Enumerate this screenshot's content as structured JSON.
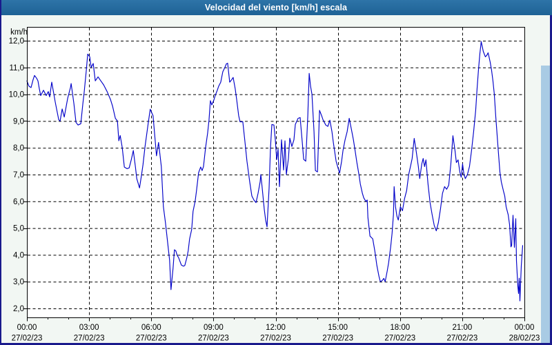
{
  "window": {
    "title": "Velocidad del viento [km/h] escala"
  },
  "colors": {
    "titlebar_top": "#2E74A8",
    "titlebar_bottom": "#1E6295",
    "frame": "#1A1A8C",
    "panel": "#F2F7F3",
    "plot_background": "#FFFFFF",
    "grid": "#000000",
    "line": "#0000C8",
    "right_strip": "#A9CBE4",
    "label_text": "#000000"
  },
  "chart_data": {
    "type": "line",
    "title": "Velocidad del viento [km/h] escala",
    "ylabel": "km/h",
    "xlabel": "",
    "ylim": [
      2,
      12
    ],
    "x_range_minutes": [
      0,
      1440
    ],
    "grid": true,
    "legend": "none",
    "y_ticks": [
      {
        "label": "12,0",
        "value": 12
      },
      {
        "label": "11,0",
        "value": 11
      },
      {
        "label": "10,0",
        "value": 10
      },
      {
        "label": "9,0",
        "value": 9
      },
      {
        "label": "8,0",
        "value": 8
      },
      {
        "label": "7,0",
        "value": 7
      },
      {
        "label": "6,0",
        "value": 6
      },
      {
        "label": "5,0",
        "value": 5
      },
      {
        "label": "4,0",
        "value": 4
      },
      {
        "label": "3,0",
        "value": 3
      },
      {
        "label": "2,0",
        "value": 2
      }
    ],
    "x_ticks": [
      {
        "minutes": 0,
        "time": "00:00",
        "date": "27/02/23"
      },
      {
        "minutes": 180,
        "time": "03:00",
        "date": "27/02/23"
      },
      {
        "minutes": 360,
        "time": "06:00",
        "date": "27/02/23"
      },
      {
        "minutes": 540,
        "time": "09:00",
        "date": "27/02/23"
      },
      {
        "minutes": 720,
        "time": "12:00",
        "date": "27/02/23"
      },
      {
        "minutes": 900,
        "time": "15:00",
        "date": "27/02/23"
      },
      {
        "minutes": 1080,
        "time": "18:00",
        "date": "27/02/23"
      },
      {
        "minutes": 1260,
        "time": "21:00",
        "date": "27/02/23"
      },
      {
        "minutes": 1440,
        "time": "00:00",
        "date": "28/02/23"
      }
    ],
    "minor_tick_every_minutes": 60,
    "series": [
      {
        "name": "Velocidad del viento",
        "unit": "km/h",
        "color": "#0000C8",
        "points": [
          [
            0,
            10.5
          ],
          [
            6,
            10.3
          ],
          [
            12,
            10.25
          ],
          [
            18,
            10.55
          ],
          [
            22,
            10.7
          ],
          [
            28,
            10.6
          ],
          [
            32,
            10.5
          ],
          [
            36,
            10.2
          ],
          [
            40,
            9.95
          ],
          [
            48,
            10.15
          ],
          [
            56,
            9.95
          ],
          [
            62,
            10.1
          ],
          [
            66,
            9.9
          ],
          [
            72,
            10.45
          ],
          [
            82,
            9.7
          ],
          [
            92,
            9.05
          ],
          [
            96,
            9.0
          ],
          [
            102,
            9.45
          ],
          [
            108,
            9.15
          ],
          [
            118,
            9.85
          ],
          [
            126,
            10.25
          ],
          [
            128,
            10.4
          ],
          [
            136,
            9.65
          ],
          [
            142,
            8.95
          ],
          [
            148,
            8.85
          ],
          [
            156,
            8.9
          ],
          [
            162,
            9.65
          ],
          [
            166,
            10.1
          ],
          [
            172,
            10.9
          ],
          [
            176,
            11.5
          ],
          [
            182,
            11.4
          ],
          [
            186,
            11.0
          ],
          [
            192,
            11.15
          ],
          [
            198,
            10.5
          ],
          [
            206,
            10.65
          ],
          [
            214,
            10.5
          ],
          [
            222,
            10.35
          ],
          [
            232,
            10.1
          ],
          [
            242,
            9.8
          ],
          [
            248,
            9.55
          ],
          [
            256,
            9.1
          ],
          [
            262,
            9.0
          ],
          [
            266,
            8.26
          ],
          [
            270,
            8.46
          ],
          [
            276,
            8.0
          ],
          [
            282,
            7.28
          ],
          [
            290,
            7.22
          ],
          [
            296,
            7.25
          ],
          [
            302,
            7.55
          ],
          [
            308,
            7.9
          ],
          [
            314,
            7.3
          ],
          [
            318,
            6.85
          ],
          [
            326,
            6.5
          ],
          [
            332,
            7.0
          ],
          [
            336,
            7.36
          ],
          [
            342,
            8.05
          ],
          [
            351,
            8.9
          ],
          [
            357,
            9.44
          ],
          [
            365,
            9.2
          ],
          [
            371,
            8.3
          ],
          [
            375,
            7.7
          ],
          [
            381,
            8.2
          ],
          [
            389,
            7.3
          ],
          [
            395,
            5.8
          ],
          [
            401,
            5.2
          ],
          [
            407,
            4.5
          ],
          [
            413,
            3.8
          ],
          [
            417,
            2.7
          ],
          [
            423,
            3.5
          ],
          [
            427,
            4.19
          ],
          [
            431,
            4.15
          ],
          [
            435,
            3.98
          ],
          [
            439,
            3.9
          ],
          [
            447,
            3.62
          ],
          [
            453,
            3.58
          ],
          [
            457,
            3.6
          ],
          [
            463,
            3.9
          ],
          [
            467,
            4.16
          ],
          [
            471,
            4.6
          ],
          [
            477,
            4.95
          ],
          [
            481,
            5.63
          ],
          [
            487,
            6.0
          ],
          [
            491,
            6.4
          ],
          [
            497,
            7.07
          ],
          [
            503,
            7.28
          ],
          [
            507,
            7.15
          ],
          [
            511,
            7.3
          ],
          [
            517,
            8.0
          ],
          [
            523,
            8.55
          ],
          [
            527,
            9.03
          ],
          [
            531,
            9.76
          ],
          [
            535,
            9.6
          ],
          [
            541,
            9.78
          ],
          [
            545,
            9.95
          ],
          [
            551,
            10.15
          ],
          [
            555,
            10.3
          ],
          [
            561,
            10.45
          ],
          [
            567,
            10.84
          ],
          [
            573,
            11.0
          ],
          [
            577,
            11.13
          ],
          [
            581,
            11.16
          ],
          [
            587,
            10.45
          ],
          [
            593,
            10.55
          ],
          [
            597,
            10.63
          ],
          [
            603,
            10.2
          ],
          [
            607,
            9.82
          ],
          [
            613,
            9.2
          ],
          [
            617,
            8.97
          ],
          [
            625,
            8.97
          ],
          [
            631,
            8.25
          ],
          [
            637,
            7.5
          ],
          [
            645,
            6.73
          ],
          [
            651,
            6.2
          ],
          [
            657,
            6.05
          ],
          [
            663,
            5.95
          ],
          [
            669,
            6.3
          ],
          [
            675,
            6.73
          ],
          [
            677,
            7.0
          ],
          [
            681,
            6.5
          ],
          [
            687,
            5.7
          ],
          [
            691,
            5.3
          ],
          [
            695,
            5.05
          ],
          [
            701,
            6.5
          ],
          [
            705,
            8.0
          ],
          [
            709,
            8.87
          ],
          [
            715,
            8.85
          ],
          [
            719,
            8.3
          ],
          [
            723,
            7.56
          ],
          [
            727,
            7.95
          ],
          [
            731,
            6.55
          ],
          [
            737,
            8.3
          ],
          [
            743,
            7.17
          ],
          [
            747,
            8.26
          ],
          [
            751,
            7.0
          ],
          [
            757,
            7.6
          ],
          [
            761,
            8.36
          ],
          [
            767,
            8.05
          ],
          [
            773,
            8.3
          ],
          [
            777,
            8.87
          ],
          [
            785,
            9.1
          ],
          [
            791,
            9.13
          ],
          [
            797,
            8.2
          ],
          [
            801,
            7.57
          ],
          [
            807,
            7.5
          ],
          [
            813,
            9.2
          ],
          [
            817,
            10.78
          ],
          [
            821,
            10.3
          ],
          [
            825,
            10.0
          ],
          [
            831,
            8.6
          ],
          [
            835,
            7.15
          ],
          [
            841,
            7.1
          ],
          [
            847,
            9.4
          ],
          [
            853,
            9.2
          ],
          [
            857,
            9.05
          ],
          [
            865,
            8.85
          ],
          [
            871,
            8.8
          ],
          [
            877,
            9.03
          ],
          [
            883,
            8.6
          ],
          [
            887,
            8.2
          ],
          [
            895,
            7.5
          ],
          [
            905,
            7.05
          ],
          [
            911,
            7.5
          ],
          [
            915,
            7.9
          ],
          [
            921,
            8.3
          ],
          [
            927,
            8.6
          ],
          [
            933,
            9.1
          ],
          [
            939,
            8.7
          ],
          [
            945,
            8.3
          ],
          [
            951,
            7.8
          ],
          [
            955,
            7.45
          ],
          [
            961,
            7.0
          ],
          [
            965,
            6.65
          ],
          [
            971,
            6.3
          ],
          [
            975,
            6.13
          ],
          [
            981,
            6.0
          ],
          [
            985,
            6.05
          ],
          [
            987,
            5.4
          ],
          [
            993,
            4.7
          ],
          [
            1001,
            4.6
          ],
          [
            1007,
            4.15
          ],
          [
            1013,
            3.6
          ],
          [
            1019,
            3.2
          ],
          [
            1023,
            3.0
          ],
          [
            1029,
            3.05
          ],
          [
            1033,
            3.12
          ],
          [
            1037,
            3.0
          ],
          [
            1043,
            3.4
          ],
          [
            1047,
            3.7
          ],
          [
            1053,
            4.3
          ],
          [
            1057,
            4.8
          ],
          [
            1061,
            5.5
          ],
          [
            1063,
            6.55
          ],
          [
            1067,
            5.8
          ],
          [
            1071,
            5.45
          ],
          [
            1075,
            5.3
          ],
          [
            1081,
            5.8
          ],
          [
            1087,
            5.65
          ],
          [
            1093,
            6.1
          ],
          [
            1099,
            6.4
          ],
          [
            1105,
            7.0
          ],
          [
            1111,
            7.35
          ],
          [
            1115,
            7.6
          ],
          [
            1121,
            8.35
          ],
          [
            1127,
            7.85
          ],
          [
            1133,
            7.3
          ],
          [
            1137,
            6.85
          ],
          [
            1143,
            7.4
          ],
          [
            1147,
            7.6
          ],
          [
            1151,
            7.3
          ],
          [
            1155,
            7.55
          ],
          [
            1161,
            6.65
          ],
          [
            1167,
            5.95
          ],
          [
            1173,
            5.5
          ],
          [
            1179,
            5.1
          ],
          [
            1185,
            4.9
          ],
          [
            1191,
            5.2
          ],
          [
            1197,
            5.7
          ],
          [
            1203,
            6.3
          ],
          [
            1209,
            6.55
          ],
          [
            1215,
            6.45
          ],
          [
            1221,
            6.6
          ],
          [
            1227,
            7.4
          ],
          [
            1233,
            8.45
          ],
          [
            1239,
            7.9
          ],
          [
            1243,
            7.45
          ],
          [
            1248,
            7.55
          ],
          [
            1253,
            7.1
          ],
          [
            1257,
            6.9
          ],
          [
            1261,
            7.4
          ],
          [
            1265,
            7.0
          ],
          [
            1269,
            6.85
          ],
          [
            1275,
            7.0
          ],
          [
            1281,
            7.3
          ],
          [
            1287,
            7.9
          ],
          [
            1293,
            8.6
          ],
          [
            1299,
            9.4
          ],
          [
            1303,
            10.2
          ],
          [
            1307,
            10.9
          ],
          [
            1311,
            11.5
          ],
          [
            1315,
            11.97
          ],
          [
            1321,
            11.6
          ],
          [
            1327,
            11.4
          ],
          [
            1331,
            11.45
          ],
          [
            1335,
            11.55
          ],
          [
            1341,
            11.2
          ],
          [
            1345,
            10.9
          ],
          [
            1349,
            10.5
          ],
          [
            1353,
            10.0
          ],
          [
            1357,
            9.2
          ],
          [
            1361,
            8.5
          ],
          [
            1365,
            7.8
          ],
          [
            1369,
            7.1
          ],
          [
            1373,
            6.73
          ],
          [
            1379,
            6.4
          ],
          [
            1383,
            6.2
          ],
          [
            1387,
            5.8
          ],
          [
            1393,
            5.5
          ],
          [
            1397,
            5.13
          ],
          [
            1401,
            4.3
          ],
          [
            1403,
            4.35
          ],
          [
            1407,
            5.48
          ],
          [
            1411,
            4.28
          ],
          [
            1415,
            5.35
          ],
          [
            1417,
            3.78
          ],
          [
            1421,
            2.83
          ],
          [
            1423,
            2.56
          ],
          [
            1425,
            3.13
          ],
          [
            1427,
            2.28
          ],
          [
            1431,
            3.6
          ],
          [
            1435,
            4.35
          ]
        ]
      }
    ]
  }
}
